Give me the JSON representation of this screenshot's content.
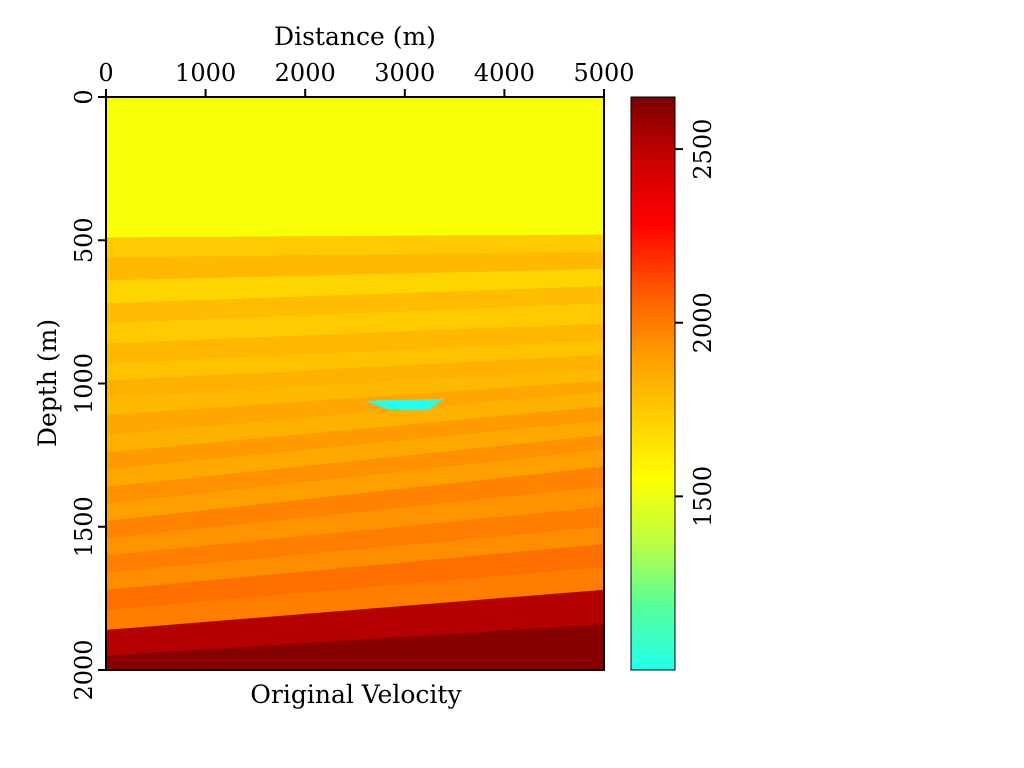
{
  "chart_data": {
    "type": "heatmap",
    "title": "Original Velocity",
    "xlabel": "Distance (m)",
    "ylabel": "Depth (m)",
    "xlim": [
      0,
      5000
    ],
    "ylim": [
      0,
      2000
    ],
    "x_ticks": [
      "0",
      "1000",
      "2000",
      "3000",
      "4000",
      "5000"
    ],
    "y_ticks": [
      "0",
      "500",
      "1000",
      "1500",
      "2000"
    ],
    "colorbar": {
      "range": [
        1000,
        2650
      ],
      "ticks": [
        "1500",
        "2000",
        "2500"
      ],
      "colormap": [
        "#22ffee",
        "#55ff99",
        "#bbff44",
        "#ffff00",
        "#ffcc00",
        "#ff9900",
        "#ff5500",
        "#ff0000",
        "#cc0000",
        "#7a0000"
      ]
    },
    "layers": [
      {
        "top_left": 0,
        "top_right": 0,
        "velocity": 1530
      },
      {
        "top_left": 490,
        "top_right": 480,
        "velocity": 1740
      },
      {
        "top_left": 560,
        "top_right": 540,
        "velocity": 1800
      },
      {
        "top_left": 640,
        "top_right": 600,
        "velocity": 1700
      },
      {
        "top_left": 720,
        "top_right": 660,
        "velocity": 1790
      },
      {
        "top_left": 790,
        "top_right": 720,
        "velocity": 1740
      },
      {
        "top_left": 860,
        "top_right": 790,
        "velocity": 1810
      },
      {
        "top_left": 930,
        "top_right": 850,
        "velocity": 1770
      },
      {
        "top_left": 990,
        "top_right": 900,
        "velocity": 1830
      },
      {
        "top_left": 1050,
        "top_right": 950,
        "velocity": 1800
      },
      {
        "top_left": 1110,
        "top_right": 990,
        "velocity": 1870
      },
      {
        "top_left": 1180,
        "top_right": 1030,
        "velocity": 1830
      },
      {
        "top_left": 1240,
        "top_right": 1080,
        "velocity": 1910
      },
      {
        "top_left": 1300,
        "top_right": 1130,
        "velocity": 1860
      },
      {
        "top_left": 1360,
        "top_right": 1180,
        "velocity": 1940
      },
      {
        "top_left": 1420,
        "top_right": 1230,
        "velocity": 1890
      },
      {
        "top_left": 1480,
        "top_right": 1290,
        "velocity": 1980
      },
      {
        "top_left": 1540,
        "top_right": 1360,
        "velocity": 1930
      },
      {
        "top_left": 1600,
        "top_right": 1430,
        "velocity": 1990
      },
      {
        "top_left": 1660,
        "top_right": 1500,
        "velocity": 1950
      },
      {
        "top_left": 1720,
        "top_right": 1560,
        "velocity": 2030
      },
      {
        "top_left": 1790,
        "top_right": 1640,
        "velocity": 1990
      },
      {
        "top_left": 1860,
        "top_right": 1720,
        "velocity": 2520
      },
      {
        "top_left": 1950,
        "top_right": 1840,
        "velocity": 2620
      }
    ],
    "anomaly": {
      "x_range": [
        2600,
        3400
      ],
      "depth_range": [
        1060,
        1090
      ],
      "velocity": 1000
    }
  }
}
